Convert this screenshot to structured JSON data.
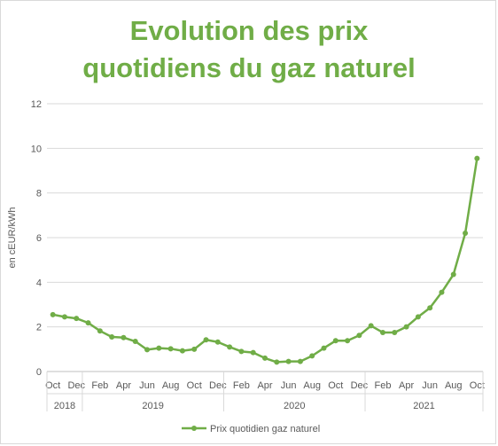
{
  "chart_data": {
    "type": "line",
    "title_lines": [
      "Evolution des prix",
      "quotidiens du gaz naturel"
    ],
    "xlabel": "",
    "ylabel": "en cEUR/kWh",
    "ylim": [
      0,
      12
    ],
    "yticks": [
      0,
      2,
      4,
      6,
      8,
      10,
      12
    ],
    "grid": "horizontal",
    "legend_position": "bottom",
    "x": [
      "2018-10",
      "2018-11",
      "2018-12",
      "2019-01",
      "2019-02",
      "2019-03",
      "2019-04",
      "2019-05",
      "2019-06",
      "2019-07",
      "2019-08",
      "2019-09",
      "2019-10",
      "2019-11",
      "2019-12",
      "2020-01",
      "2020-02",
      "2020-03",
      "2020-04",
      "2020-05",
      "2020-06",
      "2020-07",
      "2020-08",
      "2020-09",
      "2020-10",
      "2020-11",
      "2020-12",
      "2021-01",
      "2021-02",
      "2021-03",
      "2021-04",
      "2021-05",
      "2021-06",
      "2021-07",
      "2021-08",
      "2021-09",
      "2021-10"
    ],
    "month_tick_labels": [
      "Oct",
      "Dec",
      "Feb",
      "Apr",
      "Jun",
      "Aug",
      "Oct",
      "Dec",
      "Feb",
      "Apr",
      "Jun",
      "Aug",
      "Oct",
      "Dec",
      "Feb",
      "Apr",
      "Jun",
      "Aug",
      "Oct"
    ],
    "year_groups": [
      {
        "label": "2018",
        "months": 3
      },
      {
        "label": "2019",
        "months": 12
      },
      {
        "label": "2020",
        "months": 12
      },
      {
        "label": "2021",
        "months": 10
      }
    ],
    "series": [
      {
        "name": "Prix quotidien gaz naturel",
        "color": "#70ad47",
        "values": [
          2.55,
          2.45,
          2.38,
          2.18,
          1.82,
          1.55,
          1.52,
          1.35,
          0.98,
          1.05,
          1.02,
          0.93,
          1.0,
          1.42,
          1.32,
          1.1,
          0.9,
          0.85,
          0.6,
          0.42,
          0.45,
          0.45,
          0.7,
          1.05,
          1.38,
          1.38,
          1.62,
          2.05,
          1.75,
          1.75,
          2.0,
          2.45,
          2.85,
          3.55,
          4.35,
          6.2,
          9.55
        ]
      }
    ]
  }
}
